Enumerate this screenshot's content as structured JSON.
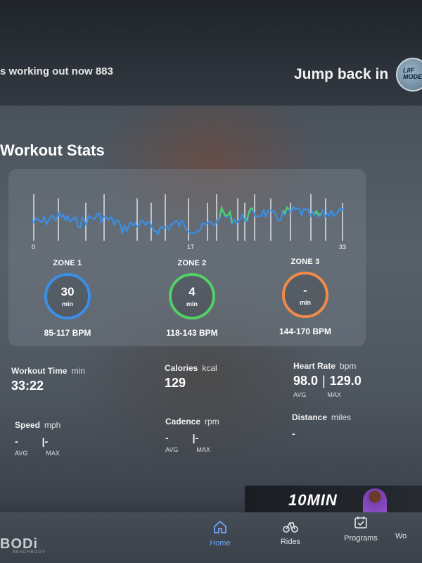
{
  "header": {
    "workout_count_text": "s working out now 883",
    "jump_back_label": "Jump back in",
    "avatar_text": "LIIF MODE"
  },
  "section_title": "Workout Stats",
  "chart": {
    "x_ticks": [
      "0",
      "17",
      "33"
    ],
    "zone_colors": {
      "zone1": "#3b8fe6",
      "zone2": "#52d068",
      "zone3": "#f08a4b"
    }
  },
  "zones": [
    {
      "title": "ZONE 1",
      "value": "30",
      "unit": "min",
      "range": "85-117 BPM",
      "color": "#3b8fe6"
    },
    {
      "title": "ZONE 2",
      "value": "4",
      "unit": "min",
      "range": "118-143 BPM",
      "color": "#52d068"
    },
    {
      "title": "ZONE 3",
      "value": "-",
      "unit": "min",
      "range": "144-170 BPM",
      "color": "#f08a4b"
    }
  ],
  "metrics": {
    "workout_time": {
      "label": "Workout Time",
      "unit": "min",
      "value": "33:22"
    },
    "calories": {
      "label": "Calories",
      "unit": "kcal",
      "value": "129"
    },
    "heart_rate": {
      "label": "Heart Rate",
      "unit": "bpm",
      "avg": "98.0",
      "max": "129.0",
      "avg_label": "AVG",
      "max_label": "MAX"
    },
    "speed": {
      "label": "Speed",
      "unit": "mph",
      "avg": "-",
      "max": "-",
      "avg_label": "AVG",
      "max_label": "MAX"
    },
    "cadence": {
      "label": "Cadence",
      "unit": "rpm",
      "avg": "-",
      "max": "-",
      "avg_label": "AVG",
      "max_label": "MAX"
    },
    "distance": {
      "label": "Distance",
      "unit": "miles",
      "value": "-"
    }
  },
  "promo": {
    "text": "10MIN"
  },
  "bottom_nav": {
    "logo": "BODi",
    "logo_sub": "BEACHBODY",
    "items": [
      {
        "label": "Home",
        "icon": "home-icon",
        "active": true
      },
      {
        "label": "Rides",
        "icon": "bike-icon",
        "active": false
      },
      {
        "label": "Programs",
        "icon": "calendar-check-icon",
        "active": false
      },
      {
        "label": "Wo",
        "icon": "workouts-icon",
        "active": false
      }
    ]
  }
}
